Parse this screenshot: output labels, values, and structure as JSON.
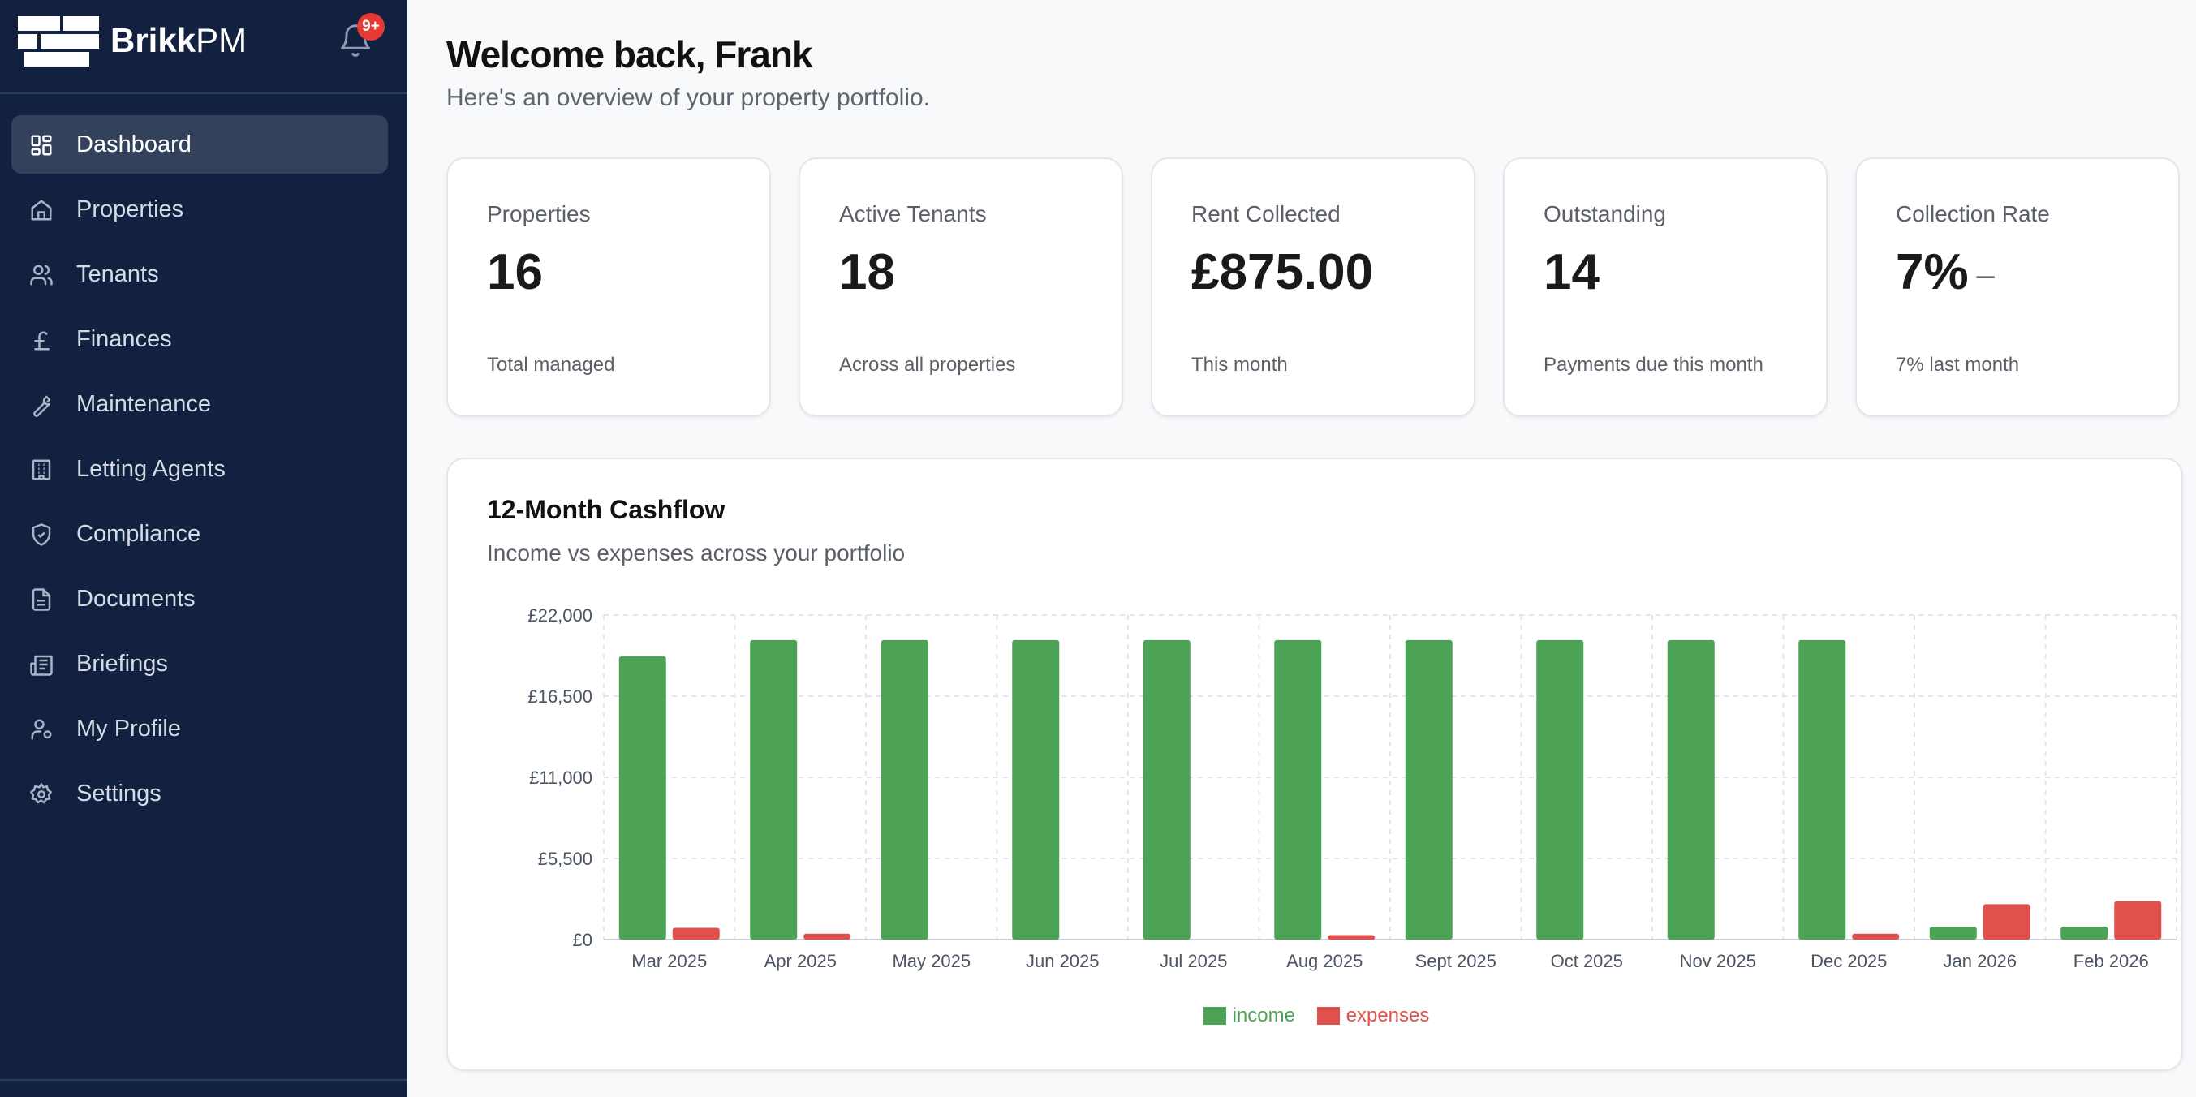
{
  "brand": {
    "name_bold": "Brikk",
    "name_light": "PM",
    "notification_badge": "9+"
  },
  "sidebar": {
    "items": [
      {
        "label": "Dashboard",
        "icon": "grid-icon",
        "active": true
      },
      {
        "label": "Properties",
        "icon": "home-icon"
      },
      {
        "label": "Tenants",
        "icon": "users-icon"
      },
      {
        "label": "Finances",
        "icon": "pound-icon"
      },
      {
        "label": "Maintenance",
        "icon": "wrench-icon"
      },
      {
        "label": "Letting Agents",
        "icon": "building-icon"
      },
      {
        "label": "Compliance",
        "icon": "shield-icon"
      },
      {
        "label": "Documents",
        "icon": "document-icon"
      },
      {
        "label": "Briefings",
        "icon": "newspaper-icon"
      },
      {
        "label": "My Profile",
        "icon": "user-cog-icon"
      },
      {
        "label": "Settings",
        "icon": "gear-icon"
      }
    ]
  },
  "header": {
    "title": "Welcome back, Frank",
    "subtitle": "Here's an overview of your property portfolio."
  },
  "stats": [
    {
      "title": "Properties",
      "value": "16",
      "foot": "Total managed"
    },
    {
      "title": "Active Tenants",
      "value": "18",
      "foot": "Across all properties"
    },
    {
      "title": "Rent Collected",
      "value": "£875.00",
      "foot": "This month"
    },
    {
      "title": "Outstanding",
      "value": "14",
      "foot": "Payments due this month"
    },
    {
      "title": "Collection Rate",
      "value": "7%",
      "trend": "–",
      "foot": "7% last month"
    }
  ],
  "cashflow": {
    "title": "12-Month Cashflow",
    "subtitle": "Income vs expenses across your portfolio"
  },
  "colors": {
    "income": "#4ca355",
    "expenses": "#e0504c",
    "sidebar": "#12213f"
  },
  "chart_data": {
    "type": "bar",
    "categories": [
      "Mar 2025",
      "Apr 2025",
      "May 2025",
      "Jun 2025",
      "Jul 2025",
      "Aug 2025",
      "Sept 2025",
      "Oct 2025",
      "Nov 2025",
      "Dec 2025",
      "Jan 2026",
      "Feb 2026"
    ],
    "series": [
      {
        "name": "income",
        "values": [
          19200,
          20300,
          20300,
          20300,
          20300,
          20300,
          20300,
          20300,
          20300,
          20300,
          875,
          875
        ]
      },
      {
        "name": "expenses",
        "values": [
          800,
          400,
          0,
          0,
          0,
          300,
          0,
          0,
          0,
          400,
          2400,
          2600
        ]
      }
    ],
    "yticks": [
      "£0",
      "£5,500",
      "£11,000",
      "£16,500",
      "£22,000"
    ],
    "ylim": [
      0,
      22000
    ],
    "grid": true,
    "legend": "bottom-center"
  }
}
